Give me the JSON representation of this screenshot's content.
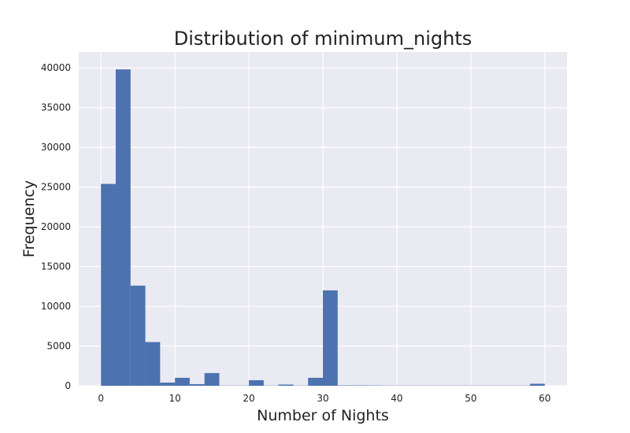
{
  "chart_data": {
    "type": "bar",
    "title": "Distribution of minimum_nights",
    "xlabel": "Number of Nights",
    "ylabel": "Frequency",
    "xlim": [
      -3,
      63
    ],
    "ylim": [
      0,
      42000
    ],
    "xticks": [
      0,
      10,
      20,
      30,
      40,
      50,
      60
    ],
    "yticks": [
      0,
      5000,
      10000,
      15000,
      20000,
      25000,
      30000,
      35000,
      40000
    ],
    "grid": true,
    "bin_edges": [
      0,
      2,
      4,
      6,
      8,
      10,
      12,
      14,
      16,
      18,
      20,
      22,
      24,
      26,
      28,
      30,
      32,
      34,
      36,
      38,
      40,
      42,
      44,
      46,
      48,
      50,
      52,
      54,
      56,
      58,
      60
    ],
    "values": [
      25400,
      39800,
      12600,
      5500,
      400,
      1000,
      200,
      1600,
      30,
      30,
      700,
      30,
      150,
      30,
      1000,
      12000,
      50,
      50,
      40,
      30,
      30,
      30,
      30,
      30,
      30,
      30,
      30,
      30,
      30,
      250
    ],
    "colors": {
      "bar": "#4c72b0",
      "plot_background": "#eaeaf2",
      "grid": "#ffffff",
      "text": "#222222"
    }
  }
}
